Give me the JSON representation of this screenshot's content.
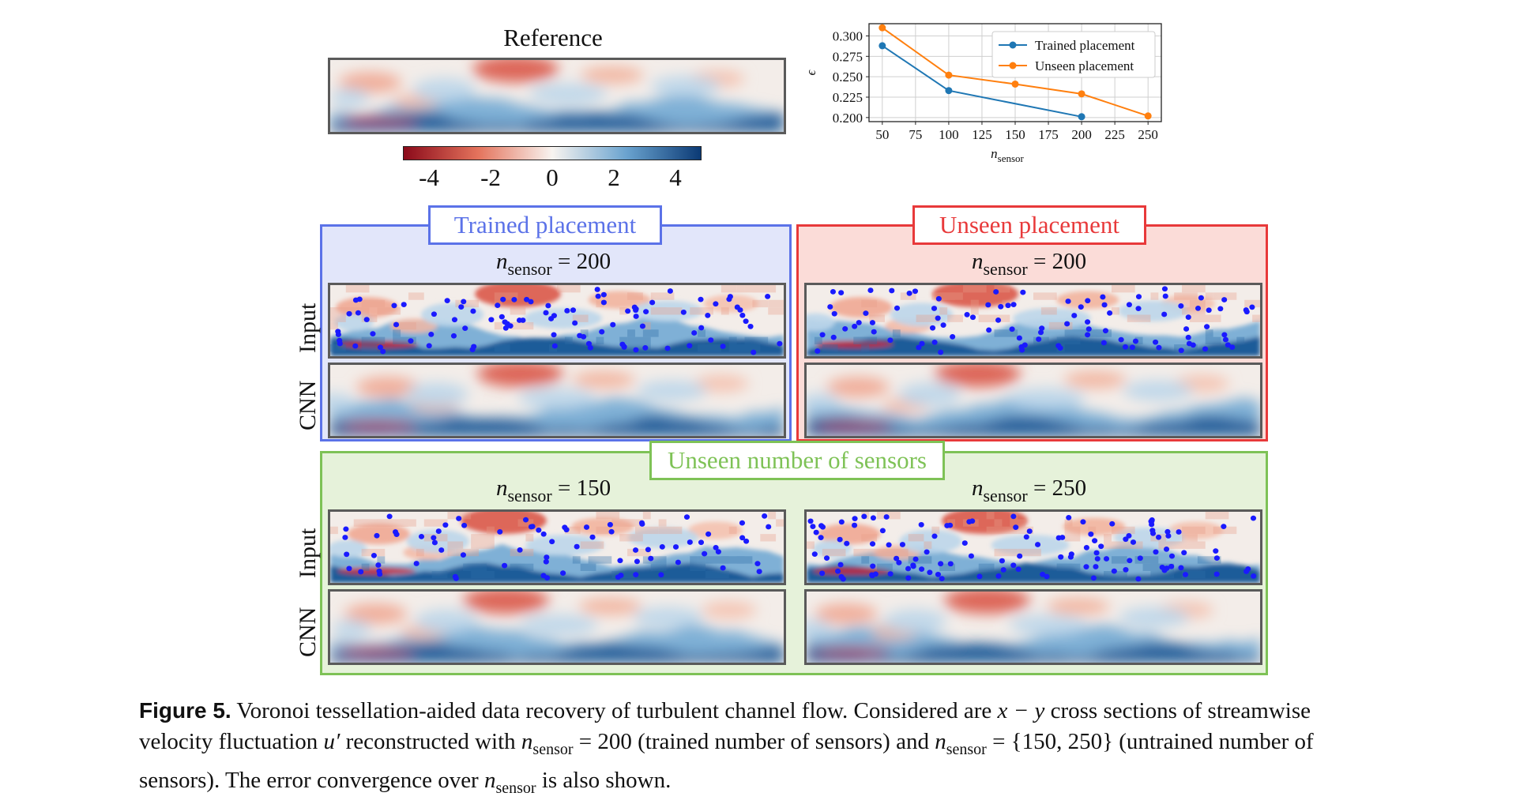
{
  "figure": {
    "reference_title": "Reference",
    "colorbar": {
      "ticks": [
        "-4",
        "-2",
        "0",
        "2",
        "4"
      ],
      "colors": [
        "#8b0a1a",
        "#e4735c",
        "#f8f4f0",
        "#6aa3cf",
        "#0b3a75"
      ]
    },
    "chart_data": {
      "type": "line",
      "xlabel": "n",
      "xlabel_sub": "sensor",
      "ylabel": "ϵ",
      "xlim": [
        40,
        260
      ],
      "ylim": [
        0.195,
        0.315
      ],
      "xticks": [
        50,
        75,
        100,
        125,
        150,
        175,
        200,
        225,
        250
      ],
      "yticks": [
        0.2,
        0.225,
        0.25,
        0.275,
        0.3
      ],
      "ytick_labels": [
        "0.200",
        "0.225",
        "0.250",
        "0.275",
        "0.300"
      ],
      "grid": true,
      "legend_position": "top-right",
      "series": [
        {
          "name": "Trained placement",
          "color": "#1f77b4",
          "x": [
            50,
            100,
            200
          ],
          "y": [
            0.288,
            0.233,
            0.201
          ]
        },
        {
          "name": "Unseen placement",
          "color": "#ff7f0e",
          "x": [
            50,
            100,
            150,
            200,
            250
          ],
          "y": [
            0.31,
            0.252,
            0.241,
            0.229,
            0.202
          ]
        }
      ]
    },
    "panels": {
      "trained": {
        "title": "Trained placement",
        "n_label": "n",
        "n_sub": "sensor",
        "n_value": "= 200",
        "border_color": "#5b72e8",
        "fill_color": "#e2e6fa"
      },
      "unseen": {
        "title": "Unseen placement",
        "n_label": "n",
        "n_sub": "sensor",
        "n_value": "= 200",
        "border_color": "#e8393a",
        "fill_color": "#fbdcd8"
      },
      "unseen_number": {
        "title": "Unseen number of sensors",
        "border_color": "#7ec256",
        "fill_color": "#e6f2da",
        "left": {
          "n_label": "n",
          "n_sub": "sensor",
          "n_value": "= 150"
        },
        "right": {
          "n_label": "n",
          "n_sub": "sensor",
          "n_value": "= 250"
        }
      }
    },
    "row_labels": {
      "input": "Input",
      "cnn": "CNN"
    },
    "sensor_color": "#1a1aff"
  },
  "caption": {
    "label": "Figure 5.",
    "part1": " Voronoi tessellation-aided data recovery of turbulent channel flow. Considered are ",
    "xy": "x − y",
    "part2": " cross sections of streamwise velocity fluctuation ",
    "u": "u′",
    "part3": " reconstructed with ",
    "n1": "n",
    "n1_sub": "sensor",
    "part4": " = 200 (trained number of sensors) and ",
    "n2": "n",
    "n2_sub": "sensor",
    "part5": " = {150, 250} (untrained number of sensors). The error convergence over ",
    "n3": "n",
    "n3_sub": "sensor",
    "part6": " is also shown."
  }
}
